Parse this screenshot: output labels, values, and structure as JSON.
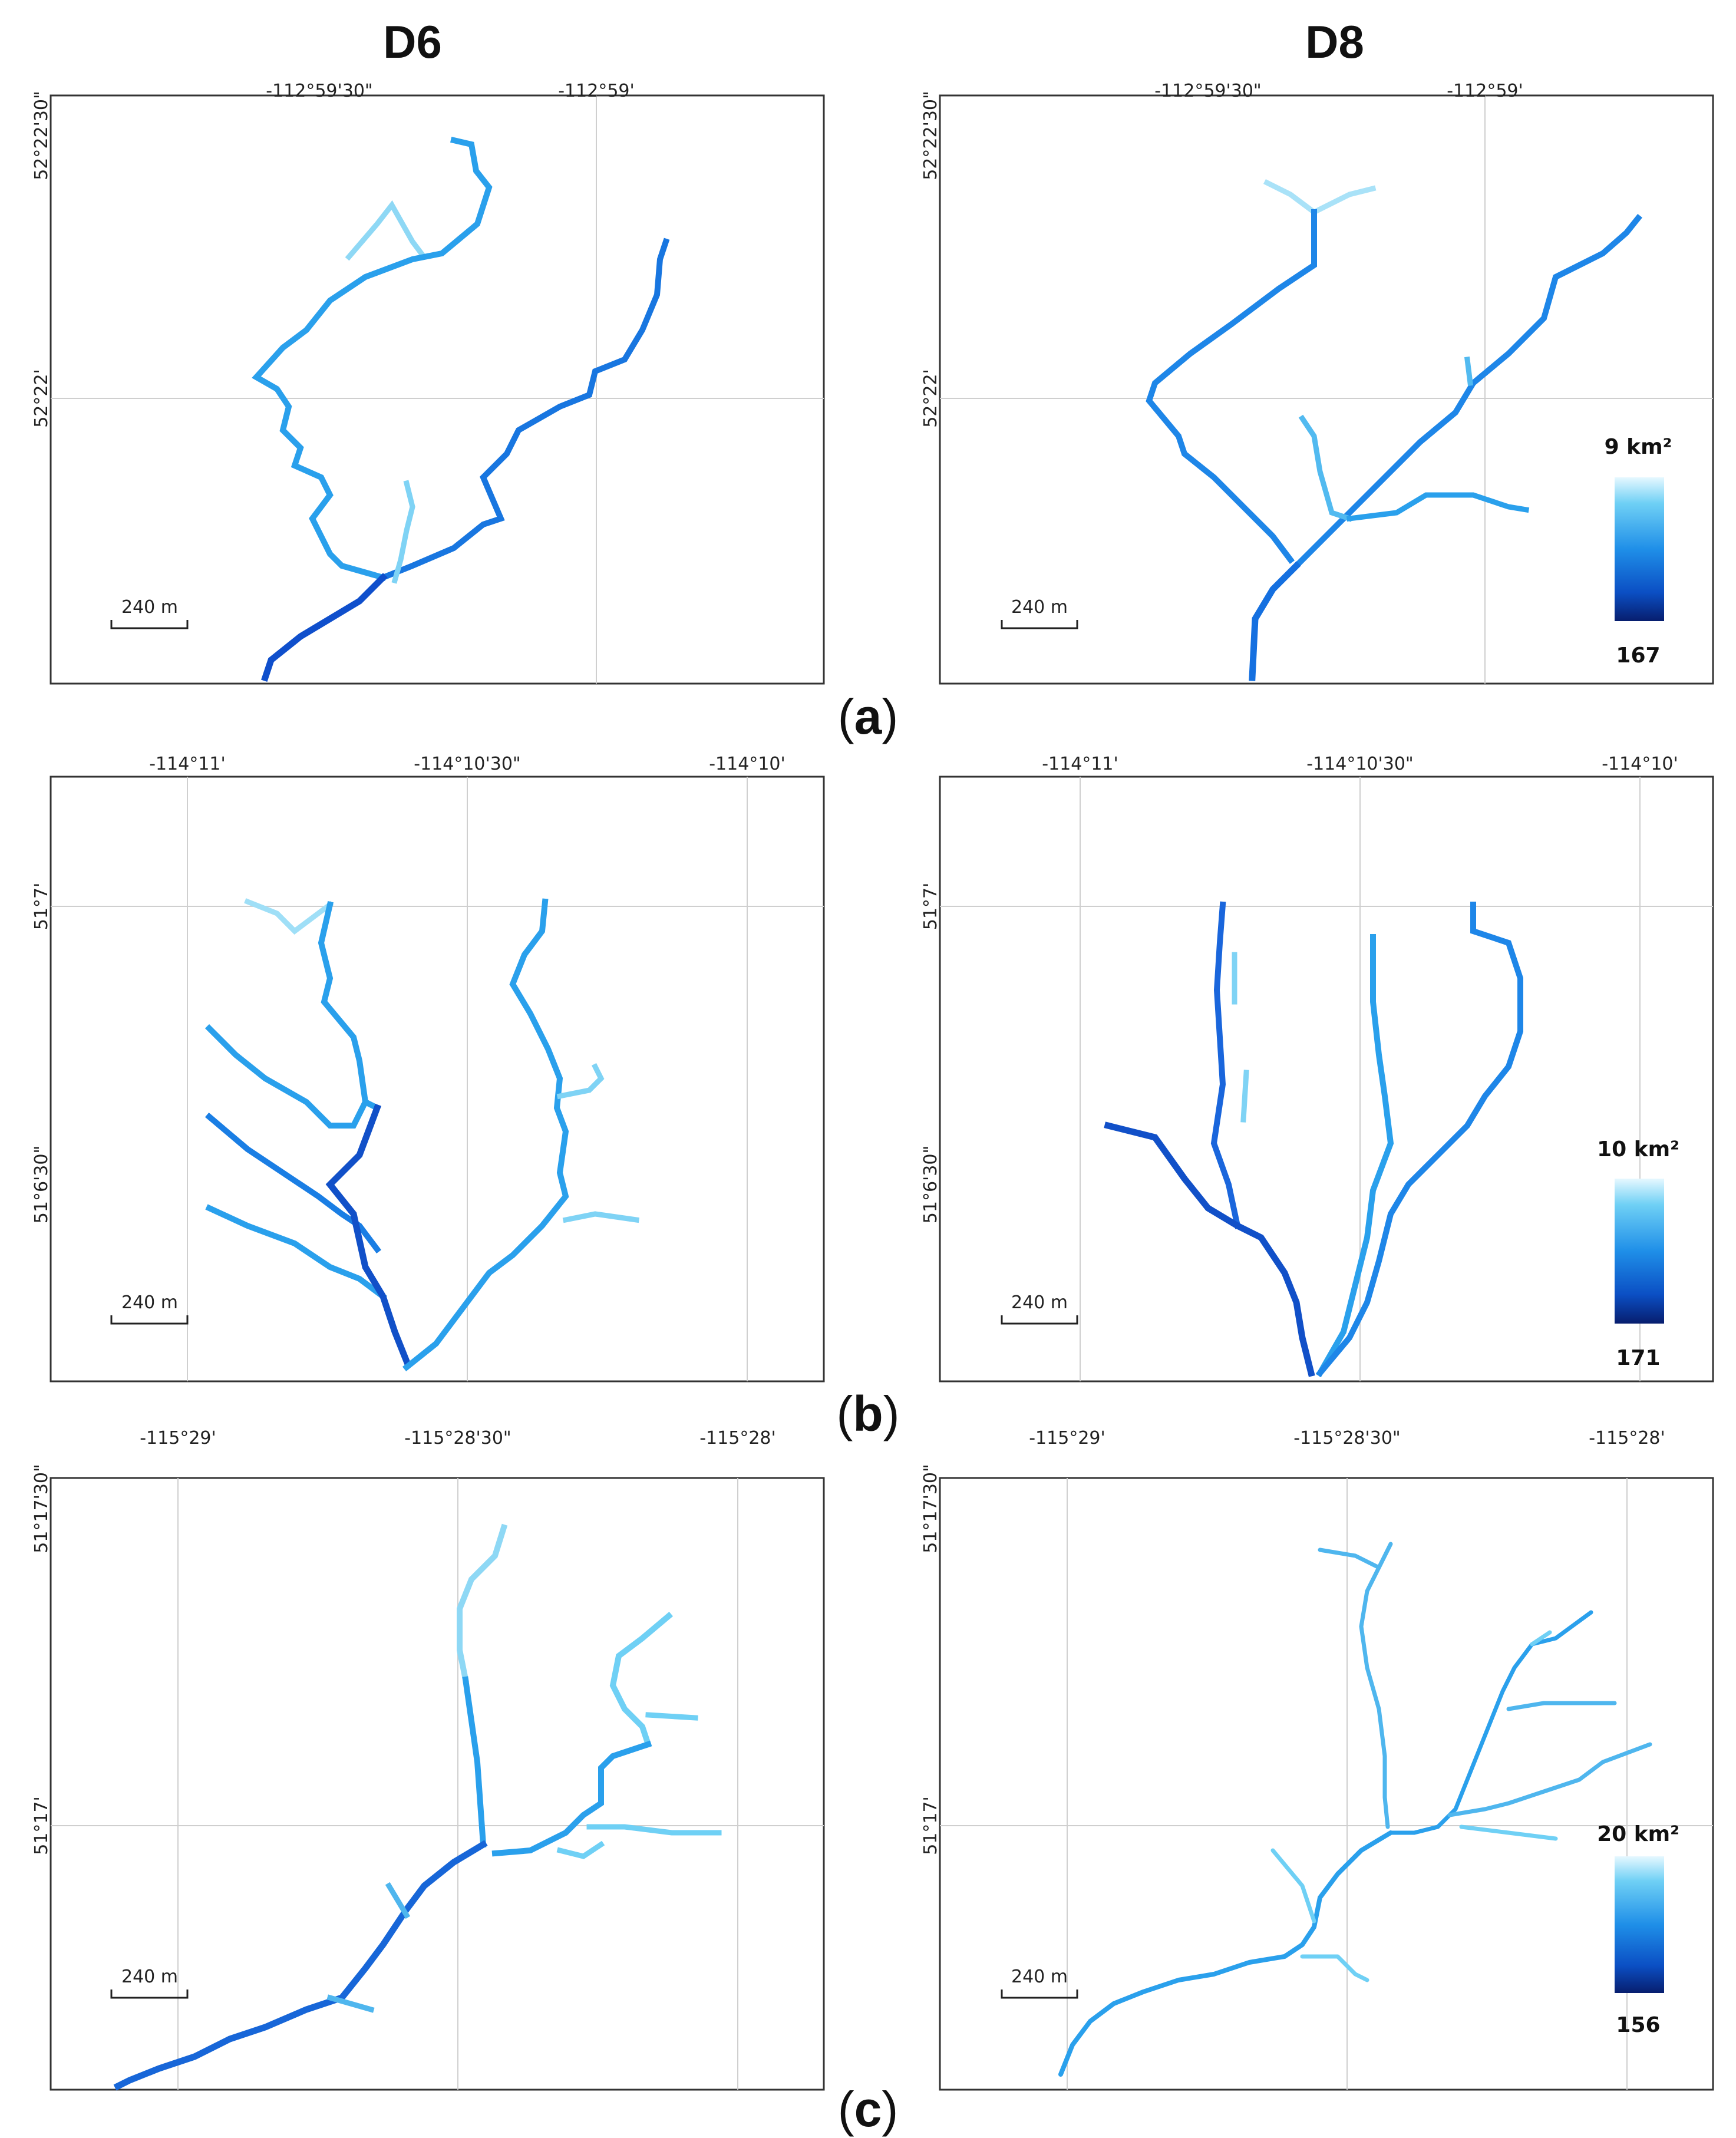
{
  "columns": [
    "D6",
    "D8"
  ],
  "rows": [
    {
      "label_paren_open": "(",
      "label_letter": "a",
      "label_paren_close": ")",
      "x_ticks": [
        "-112°59'30\"",
        "-112°59'"
      ],
      "y_ticks": [
        "52°22'30\"",
        "52°22'"
      ],
      "scale_bar": "240 m",
      "legend": {
        "top": "9 km²",
        "bottom": "167"
      }
    },
    {
      "label_paren_open": "(",
      "label_letter": "b",
      "label_paren_close": ")",
      "x_ticks": [
        "-114°11'",
        "-114°10'30\"",
        "-114°10'"
      ],
      "y_ticks": [
        "51°7'",
        "51°6'30\""
      ],
      "scale_bar": "240 m",
      "legend": {
        "top": "10 km²",
        "bottom": "171"
      }
    },
    {
      "label_paren_open": "(",
      "label_letter": "c",
      "label_paren_close": ")",
      "x_ticks": [
        "-115°29'",
        "-115°28'30\"",
        "-115°28'"
      ],
      "y_ticks": [
        "51°17'30\"",
        "51°17'"
      ],
      "scale_bar": "240 m",
      "legend": {
        "top": "20 km²",
        "bottom": "156"
      }
    }
  ],
  "colors": {
    "high_accumulation": "#0a2a8a",
    "mid_accumulation": "#1f8fe8",
    "low_accumulation": "#bfe9fb",
    "gridline": "#cfcfcf",
    "frame": "#333333"
  }
}
